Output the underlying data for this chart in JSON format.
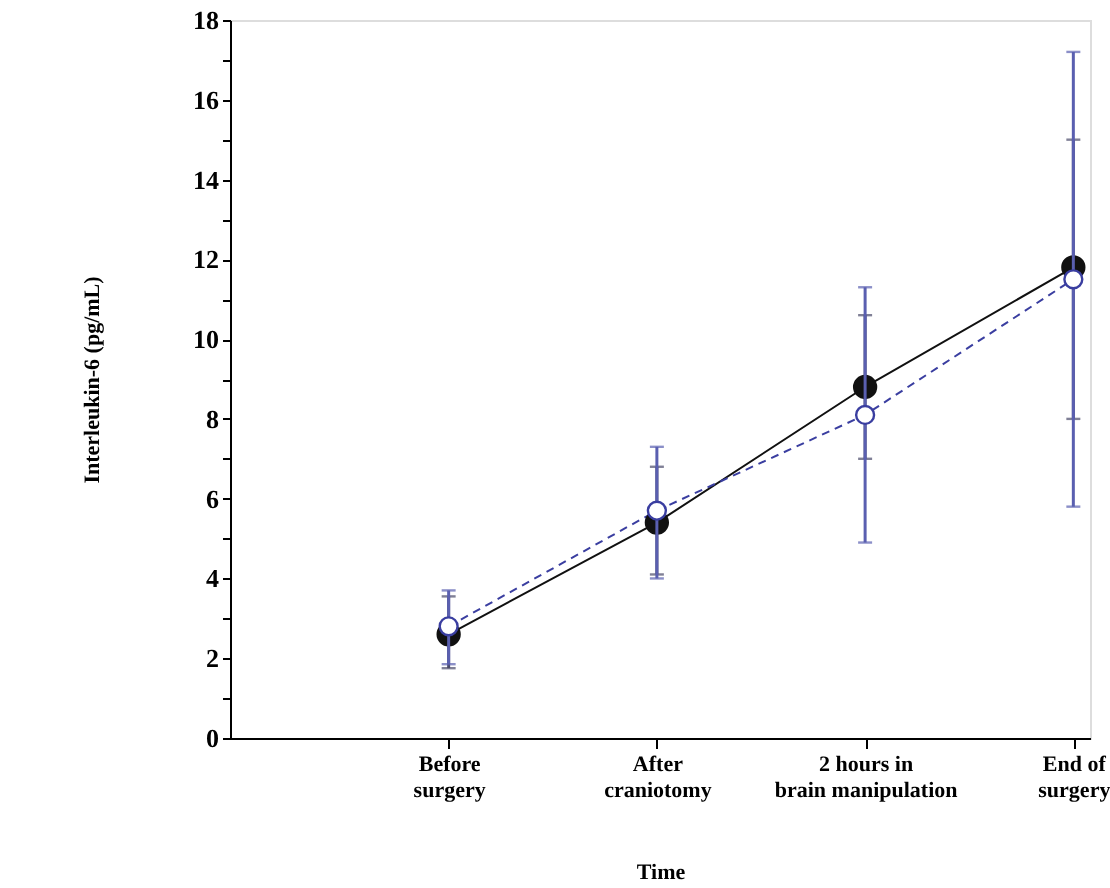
{
  "chart_data": {
    "type": "line",
    "xlabel": "Time",
    "ylabel": "Interleukin-6 (pg/mL)",
    "categories": [
      "Before\nsurgery",
      "After\ncraniotomy",
      "2 hours in\nbrain manipulation",
      "End of\nsurgery"
    ],
    "series": [
      {
        "color": "#111111",
        "line_style": "solid",
        "values": [
          2.6,
          5.4,
          8.8,
          11.8
        ],
        "errors": [
          [
            1.75,
            3.55
          ],
          [
            4.1,
            6.8
          ],
          [
            7.0,
            10.6
          ],
          [
            8.0,
            15.0
          ]
        ]
      },
      {
        "color": "#3a3ea0",
        "line_style": "dashed",
        "values": [
          2.8,
          5.7,
          8.1,
          11.5
        ],
        "errors": [
          [
            1.85,
            3.7
          ],
          [
            4.0,
            7.3
          ],
          [
            4.9,
            11.3
          ],
          [
            5.8,
            17.2
          ]
        ]
      }
    ],
    "ylim": [
      0,
      18
    ],
    "yticks": [
      0,
      {
        "value": 1,
        "label": null
      },
      2,
      {
        "value": 3,
        "label": null
      },
      4,
      {
        "value": 5,
        "label": null
      },
      6,
      {
        "value": 7,
        "label": null
      },
      8,
      {
        "value": 9,
        "label": null
      },
      10,
      {
        "value": 11,
        "label": null
      },
      12,
      {
        "value": 13,
        "label": null
      },
      14,
      {
        "value": 15,
        "label": null
      },
      16,
      {
        "value": 17,
        "label": null
      },
      18
    ],
    "grid": false,
    "marker": "circle"
  }
}
